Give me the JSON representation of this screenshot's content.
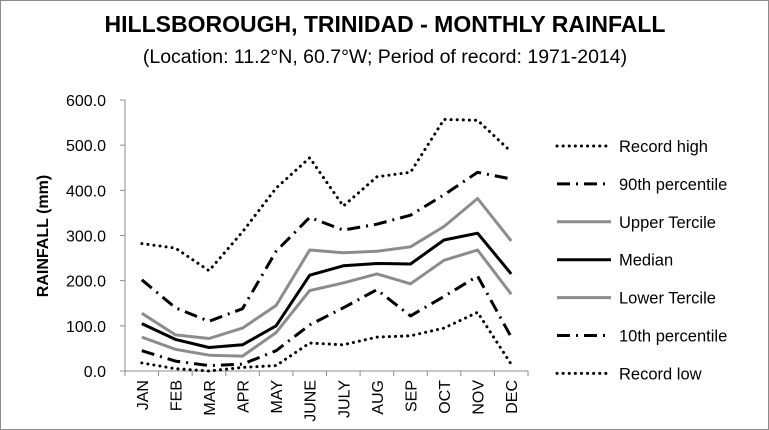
{
  "chart_data": {
    "type": "line",
    "title": "HILLSBOROUGH, TRINIDAD - MONTHLY RAINFALL",
    "subtitle": "(Location: 11.2°N, 60.7°W; Period of record: 1971-2014)",
    "xlabel": "",
    "ylabel": "RAINFALL (mm)",
    "ylim": [
      0,
      600
    ],
    "yticks": [
      "0.0",
      "100.0",
      "200.0",
      "300.0",
      "400.0",
      "500.0",
      "600.0"
    ],
    "categories": [
      "JAN",
      "FEB",
      "MAR",
      "APR",
      "MAY",
      "JUNE",
      "JULY",
      "AUG",
      "SEP",
      "OCT",
      "NOV",
      "DEC"
    ],
    "legend_position": "right",
    "grid": false,
    "series": [
      {
        "name": "Record high",
        "style": "dotted",
        "color": "#000000",
        "values": [
          282,
          272,
          222,
          308,
          405,
          472,
          365,
          430,
          440,
          557,
          555,
          485
        ]
      },
      {
        "name": "90th percentile",
        "style": "dashdot",
        "color": "#000000",
        "values": [
          202,
          140,
          110,
          138,
          265,
          340,
          312,
          325,
          345,
          390,
          440,
          425
        ]
      },
      {
        "name": "Upper Tercile",
        "style": "solid",
        "color": "#8c8c8c",
        "values": [
          128,
          80,
          72,
          95,
          145,
          268,
          262,
          265,
          275,
          320,
          382,
          288
        ]
      },
      {
        "name": "Median",
        "style": "solid",
        "color": "#000000",
        "values": [
          105,
          70,
          52,
          58,
          100,
          212,
          233,
          238,
          237,
          290,
          305,
          215
        ]
      },
      {
        "name": "Lower Tercile",
        "style": "solid",
        "color": "#8c8c8c",
        "values": [
          75,
          48,
          35,
          33,
          85,
          178,
          195,
          215,
          193,
          245,
          268,
          170
        ]
      },
      {
        "name": "10th percentile",
        "style": "dashdot",
        "color": "#000000",
        "values": [
          45,
          22,
          12,
          15,
          45,
          102,
          140,
          180,
          122,
          165,
          210,
          75
        ]
      },
      {
        "name": "Record low",
        "style": "dotted",
        "color": "#000000",
        "values": [
          18,
          5,
          0,
          8,
          12,
          62,
          58,
          75,
          78,
          95,
          130,
          15
        ]
      }
    ]
  }
}
